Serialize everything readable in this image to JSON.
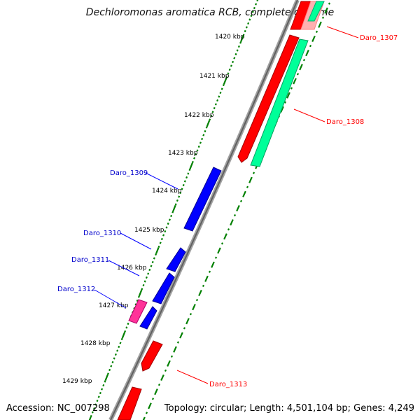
{
  "title": "Dechloromonas aromatica RCB, complete genome",
  "footer": {
    "accession": "Accession: NC_007298",
    "topology": "Topology: circular; Length: 4,501,104 bp; Genes: 4,249"
  },
  "ticks": [
    {
      "label": "1420 kbp"
    },
    {
      "label": "1421 kbp"
    },
    {
      "label": "1422 kbp"
    },
    {
      "label": "1423 kbp"
    },
    {
      "label": "1424 kbp"
    },
    {
      "label": "1425 kbp"
    },
    {
      "label": "1426 kbp"
    },
    {
      "label": "1427 kbp"
    },
    {
      "label": "1428 kbp"
    },
    {
      "label": "1429 kbp"
    }
  ],
  "genes": [
    {
      "label": "Daro_1307",
      "strand": "reverse",
      "color": "#ff0000"
    },
    {
      "label": "Daro_1308",
      "strand": "reverse",
      "color": "#ff0000"
    },
    {
      "label": "Daro_1309",
      "strand": "forward",
      "color": "#0000cc"
    },
    {
      "label": "Daro_1310",
      "strand": "forward",
      "color": "#0000cc"
    },
    {
      "label": "Daro_1311",
      "strand": "forward",
      "color": "#0000cc"
    },
    {
      "label": "Daro_1312",
      "strand": "forward",
      "color": "#0000cc"
    },
    {
      "label": "Daro_1313",
      "strand": "reverse",
      "color": "#ff0000"
    }
  ],
  "colors": {
    "forward_cds": "#0000ff",
    "reverse_cds": "#ff0000",
    "rna": "#00ff99",
    "other": "#ff3399",
    "backbone": "#808080",
    "tick": "#008000"
  }
}
